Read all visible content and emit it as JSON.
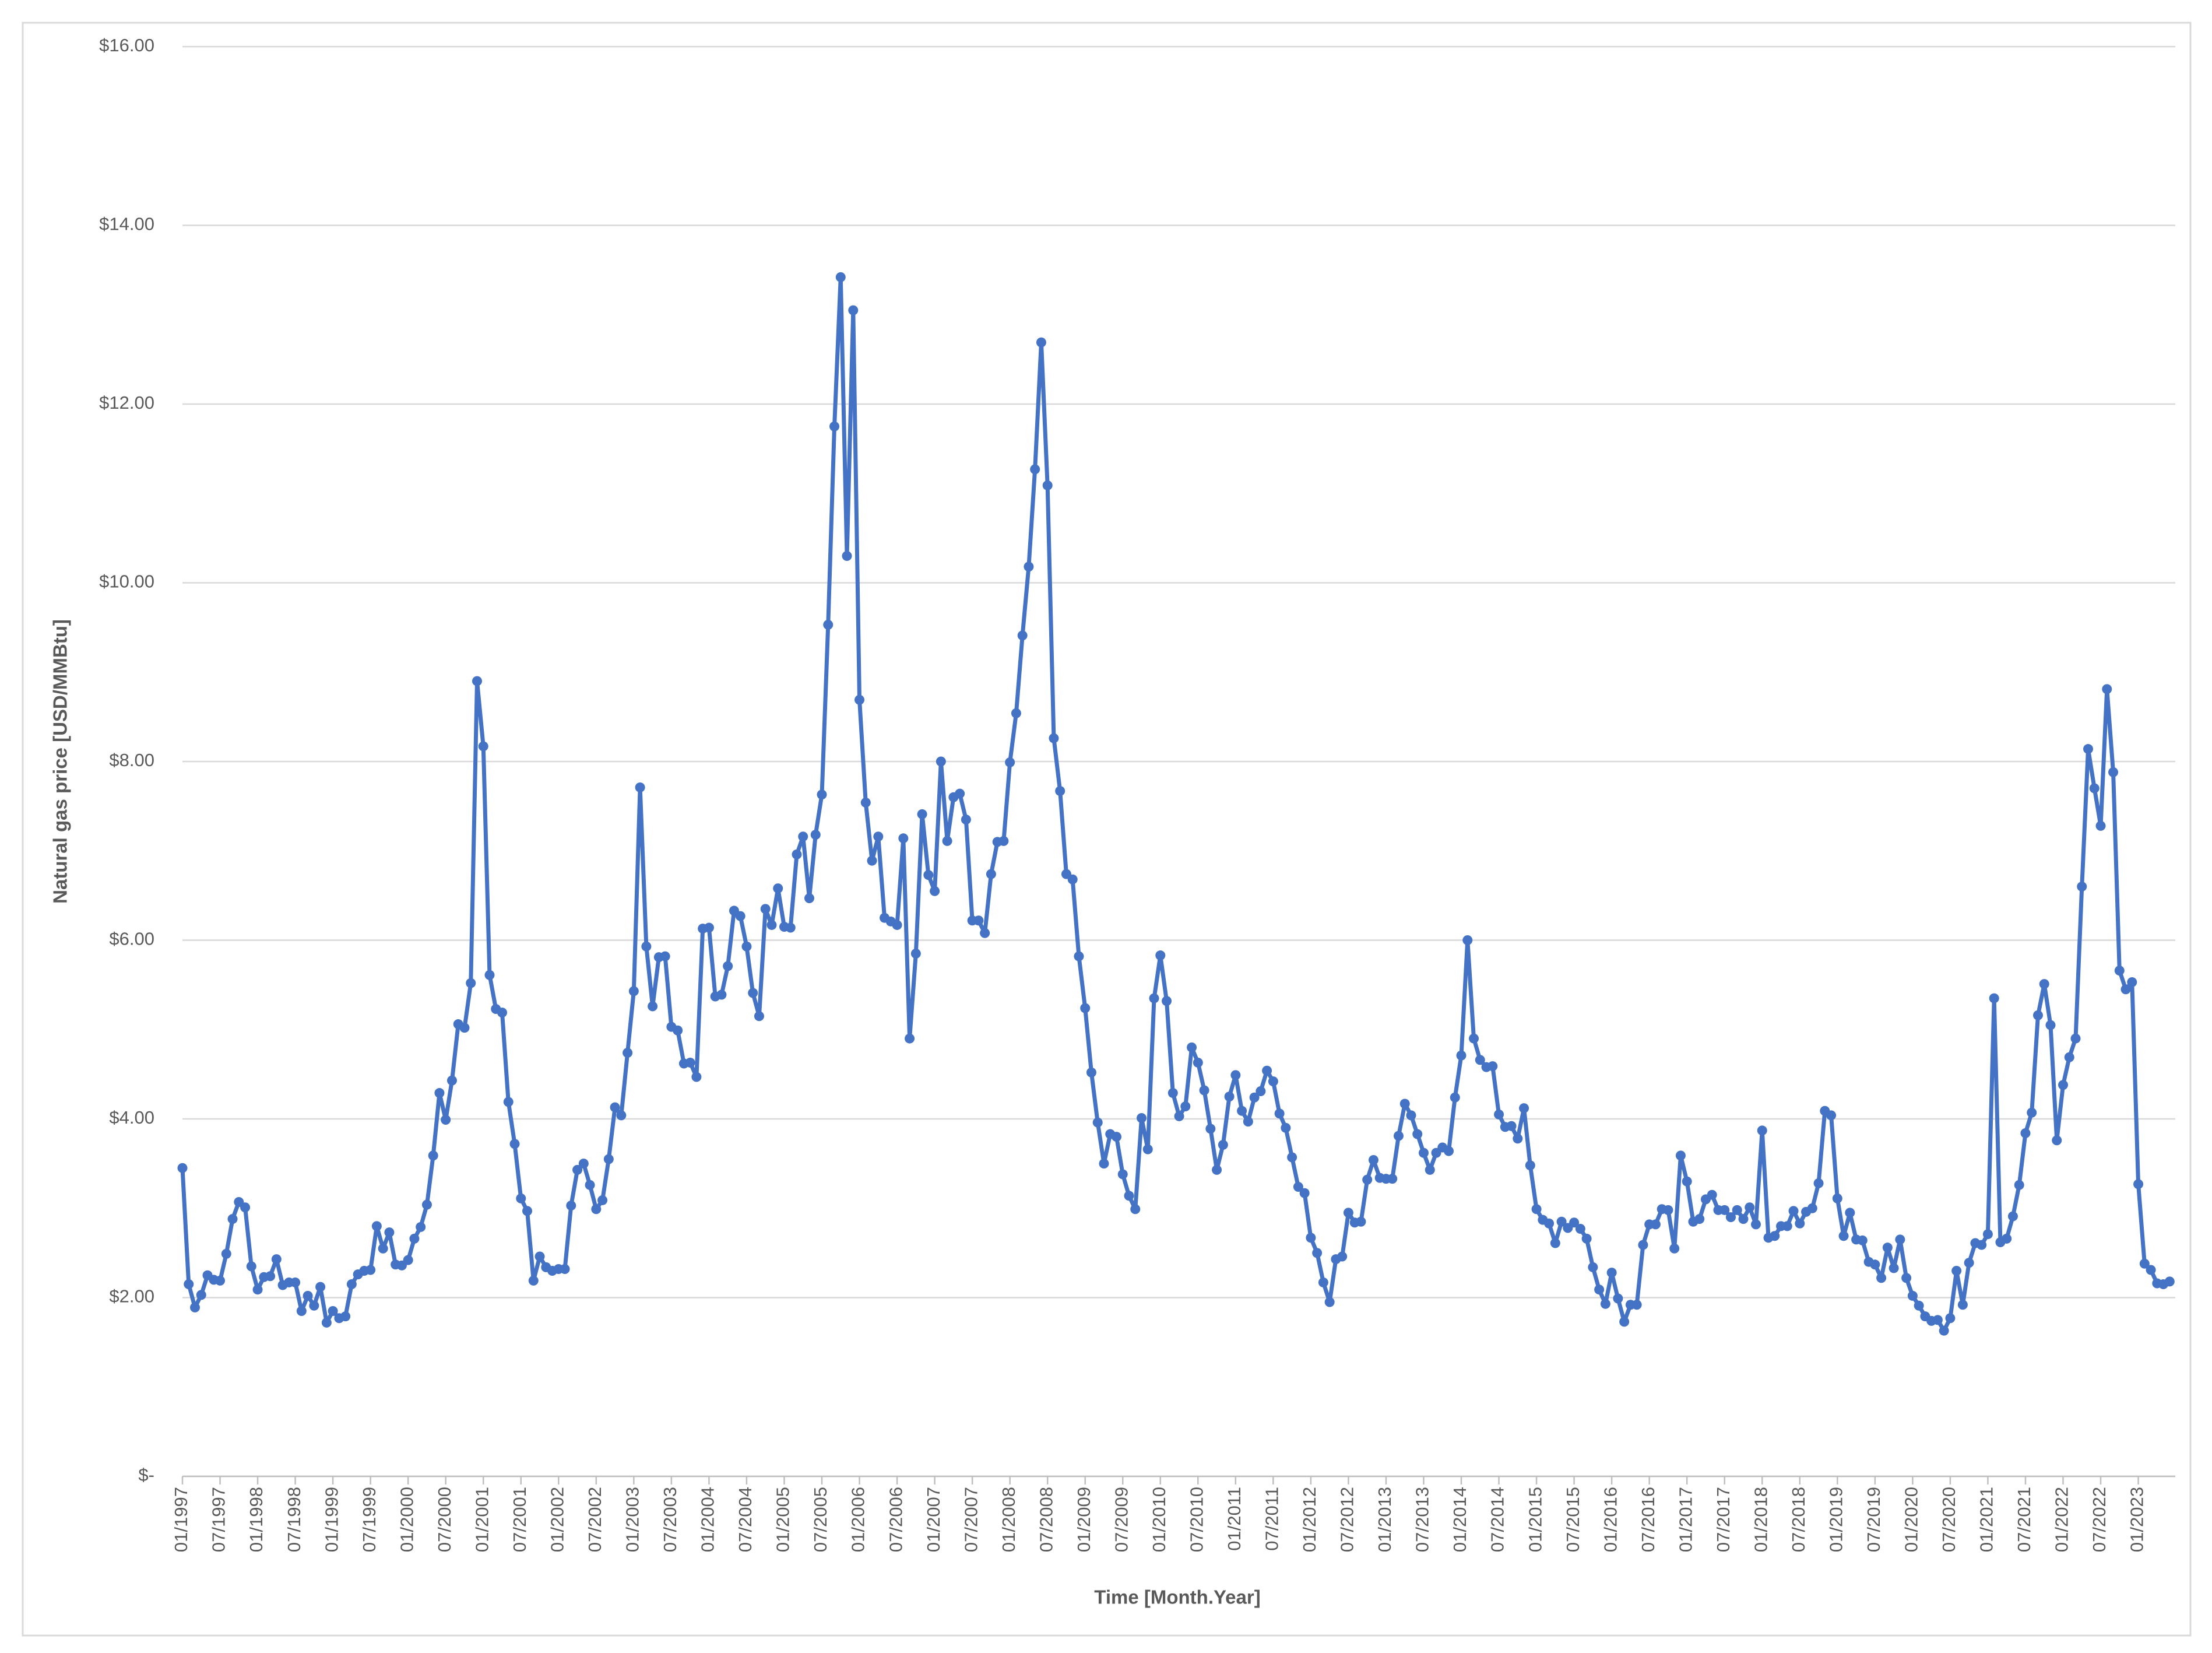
{
  "chart_data": {
    "type": "line",
    "y_label": "Natural gas price [USD/MMBtu]",
    "x_label": "Time [Month.Year]",
    "color": "#4472c4",
    "grid": true,
    "ylim": [
      0,
      16
    ],
    "yticks": [
      {
        "value": 0,
        "label": "$-"
      },
      {
        "value": 2,
        "label": "$2.00"
      },
      {
        "value": 4,
        "label": "$4.00"
      },
      {
        "value": 6,
        "label": "$6.00"
      },
      {
        "value": 8,
        "label": "$8.00"
      },
      {
        "value": 10,
        "label": "$10.00"
      },
      {
        "value": 12,
        "label": "$12.00"
      },
      {
        "value": 14,
        "label": "$14.00"
      },
      {
        "value": 16,
        "label": "$16.00"
      }
    ],
    "categories": [
      "01/1997",
      null,
      null,
      null,
      null,
      null,
      "07/1997",
      null,
      null,
      null,
      null,
      null,
      "01/1998",
      null,
      null,
      null,
      null,
      null,
      "07/1998",
      null,
      null,
      null,
      null,
      null,
      "01/1999",
      null,
      null,
      null,
      null,
      null,
      "07/1999",
      null,
      null,
      null,
      null,
      null,
      "01/2000",
      null,
      null,
      null,
      null,
      null,
      "07/2000",
      null,
      null,
      null,
      null,
      null,
      "01/2001",
      null,
      null,
      null,
      null,
      null,
      "07/2001",
      null,
      null,
      null,
      null,
      null,
      "01/2002",
      null,
      null,
      null,
      null,
      null,
      "07/2002",
      null,
      null,
      null,
      null,
      null,
      "01/2003",
      null,
      null,
      null,
      null,
      null,
      "07/2003",
      null,
      null,
      null,
      null,
      null,
      "01/2004",
      null,
      null,
      null,
      null,
      null,
      "07/2004",
      null,
      null,
      null,
      null,
      null,
      "01/2005",
      null,
      null,
      null,
      null,
      null,
      "07/2005",
      null,
      null,
      null,
      null,
      null,
      "01/2006",
      null,
      null,
      null,
      null,
      null,
      "07/2006",
      null,
      null,
      null,
      null,
      null,
      "01/2007",
      null,
      null,
      null,
      null,
      null,
      "07/2007",
      null,
      null,
      null,
      null,
      null,
      "01/2008",
      null,
      null,
      null,
      null,
      null,
      "07/2008",
      null,
      null,
      null,
      null,
      null,
      "01/2009",
      null,
      null,
      null,
      null,
      null,
      "07/2009",
      null,
      null,
      null,
      null,
      null,
      "01/2010",
      null,
      null,
      null,
      null,
      null,
      "07/2010",
      null,
      null,
      null,
      null,
      null,
      "01/2011",
      null,
      null,
      null,
      null,
      null,
      "07/2011",
      null,
      null,
      null,
      null,
      null,
      "01/2012",
      null,
      null,
      null,
      null,
      null,
      "07/2012",
      null,
      null,
      null,
      null,
      null,
      "01/2013",
      null,
      null,
      null,
      null,
      null,
      "07/2013",
      null,
      null,
      null,
      null,
      null,
      "01/2014",
      null,
      null,
      null,
      null,
      null,
      "07/2014",
      null,
      null,
      null,
      null,
      null,
      "01/2015",
      null,
      null,
      null,
      null,
      null,
      "07/2015",
      null,
      null,
      null,
      null,
      null,
      "01/2016",
      null,
      null,
      null,
      null,
      null,
      "07/2016",
      null,
      null,
      null,
      null,
      null,
      "01/2017",
      null,
      null,
      null,
      null,
      null,
      "07/2017",
      null,
      null,
      null,
      null,
      null,
      "01/2018",
      null,
      null,
      null,
      null,
      null,
      "07/2018",
      null,
      null,
      null,
      null,
      null,
      "01/2019",
      null,
      null,
      null,
      null,
      null,
      "07/2019",
      null,
      null,
      null,
      null,
      null,
      "01/2020",
      null,
      null,
      null,
      null,
      null,
      "07/2020",
      null,
      null,
      null,
      null,
      null,
      "01/2021",
      null,
      null,
      null,
      null,
      null,
      "07/2021",
      null,
      null,
      null,
      null,
      null,
      "01/2022",
      null,
      null,
      null,
      null,
      null,
      "07/2022",
      null,
      null,
      null,
      null,
      null,
      "01/2023",
      null,
      null,
      null,
      null,
      null
    ],
    "values": [
      3.45,
      2.15,
      1.89,
      2.03,
      2.25,
      2.2,
      2.19,
      2.49,
      2.88,
      3.07,
      3.01,
      2.35,
      2.09,
      2.23,
      2.24,
      2.43,
      2.14,
      2.17,
      2.17,
      1.85,
      2.02,
      1.91,
      2.12,
      1.72,
      1.85,
      1.77,
      1.79,
      2.15,
      2.26,
      2.3,
      2.31,
      2.8,
      2.55,
      2.73,
      2.37,
      2.36,
      2.42,
      2.66,
      2.79,
      3.04,
      3.59,
      4.29,
      3.99,
      4.43,
      5.06,
      5.02,
      5.52,
      8.9,
      8.17,
      5.61,
      5.23,
      5.19,
      4.19,
      3.72,
      3.11,
      2.97,
      2.19,
      2.46,
      2.34,
      2.3,
      2.32,
      2.32,
      3.03,
      3.43,
      3.5,
      3.26,
      2.99,
      3.09,
      3.55,
      4.13,
      4.04,
      4.74,
      5.43,
      7.71,
      5.93,
      5.26,
      5.81,
      5.82,
      5.03,
      4.99,
      4.62,
      4.63,
      4.47,
      6.13,
      6.14,
      5.37,
      5.39,
      5.71,
      6.33,
      6.27,
      5.93,
      5.41,
      5.15,
      6.35,
      6.17,
      6.58,
      6.15,
      6.14,
      6.96,
      7.16,
      6.47,
      7.18,
      7.63,
      9.53,
      11.75,
      13.42,
      10.3,
      13.05,
      8.69,
      7.54,
      6.89,
      7.16,
      6.25,
      6.21,
      6.17,
      7.14,
      4.9,
      5.85,
      7.41,
      6.73,
      6.55,
      8.0,
      7.11,
      7.6,
      7.64,
      7.35,
      6.22,
      6.22,
      6.08,
      6.74,
      7.1,
      7.11,
      7.99,
      8.54,
      9.41,
      10.18,
      11.27,
      12.69,
      11.09,
      8.26,
      7.67,
      6.74,
      6.68,
      5.82,
      5.24,
      4.52,
      3.96,
      3.5,
      3.83,
      3.8,
      3.38,
      3.14,
      2.99,
      4.01,
      3.66,
      5.35,
      5.83,
      5.32,
      4.29,
      4.03,
      4.14,
      4.8,
      4.63,
      4.32,
      3.89,
      3.43,
      3.71,
      4.25,
      4.49,
      4.09,
      3.97,
      4.24,
      4.31,
      4.54,
      4.42,
      4.06,
      3.9,
      3.57,
      3.24,
      3.17,
      2.67,
      2.5,
      2.17,
      1.95,
      2.43,
      2.46,
      2.95,
      2.84,
      2.85,
      3.32,
      3.54,
      3.34,
      3.33,
      3.33,
      3.81,
      4.17,
      4.04,
      3.83,
      3.62,
      3.43,
      3.62,
      3.68,
      3.64,
      4.24,
      4.71,
      6.0,
      4.9,
      4.66,
      4.58,
      4.59,
      4.05,
      3.91,
      3.92,
      3.78,
      4.12,
      3.48,
      2.99,
      2.87,
      2.83,
      2.61,
      2.85,
      2.78,
      2.84,
      2.77,
      2.66,
      2.34,
      2.09,
      1.93,
      2.28,
      1.99,
      1.73,
      1.92,
      1.92,
      2.59,
      2.82,
      2.82,
      2.99,
      2.98,
      2.55,
      3.59,
      3.3,
      2.85,
      2.88,
      3.1,
      3.15,
      2.98,
      2.98,
      2.9,
      2.98,
      2.88,
      3.01,
      2.82,
      3.87,
      2.67,
      2.69,
      2.8,
      2.8,
      2.97,
      2.83,
      2.96,
      3.0,
      3.28,
      4.09,
      4.04,
      3.11,
      2.69,
      2.95,
      2.65,
      2.64,
      2.4,
      2.37,
      2.22,
      2.56,
      2.33,
      2.65,
      2.22,
      2.02,
      1.91,
      1.79,
      1.74,
      1.75,
      1.63,
      1.77,
      2.3,
      1.92,
      2.39,
      2.61,
      2.59,
      2.71,
      5.35,
      2.62,
      2.66,
      2.91,
      3.26,
      3.84,
      4.07,
      5.16,
      5.51,
      5.05,
      3.76,
      4.38,
      4.69,
      4.9,
      6.6,
      8.14,
      7.7,
      7.28,
      8.81,
      7.88,
      5.66,
      5.45,
      5.53,
      3.27,
      2.38,
      2.31,
      2.16,
      2.15,
      2.18
    ]
  }
}
